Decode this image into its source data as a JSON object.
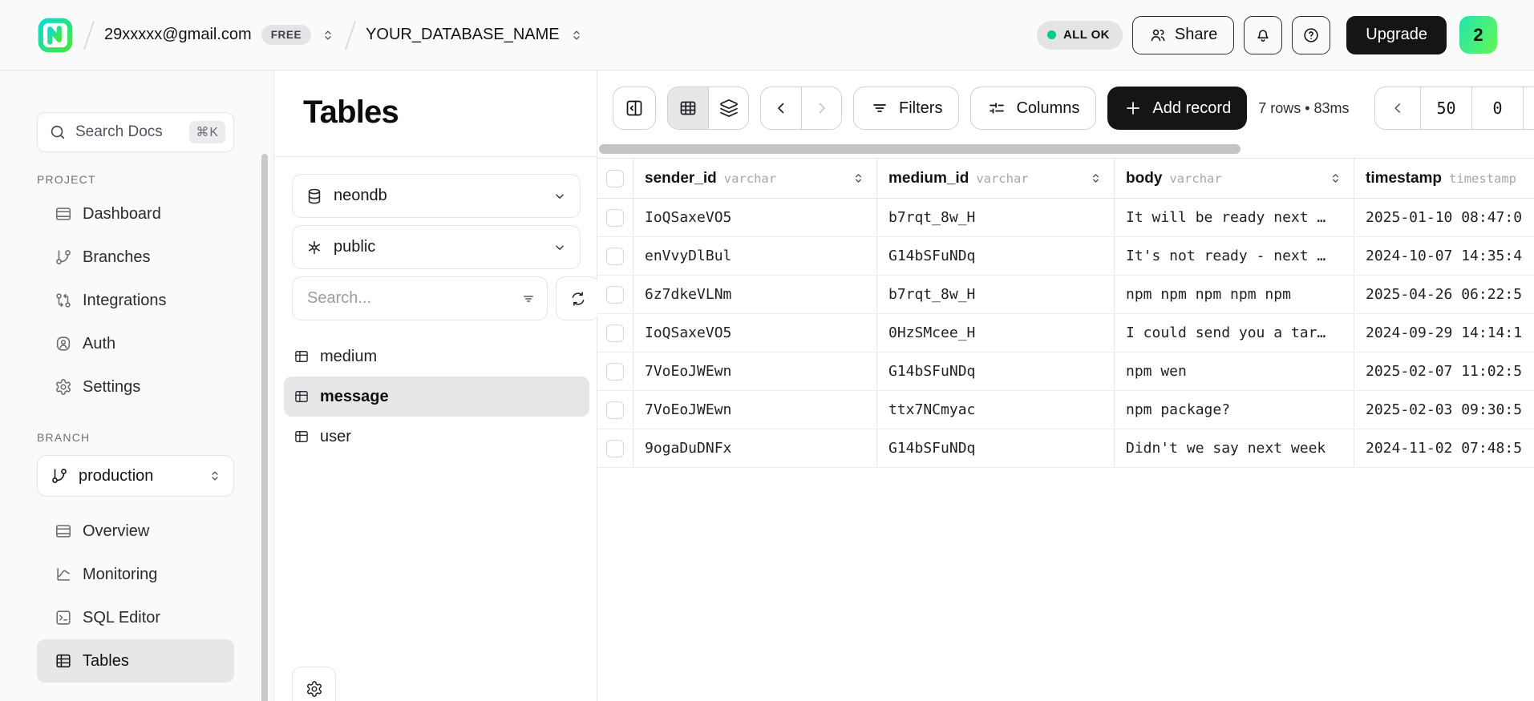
{
  "topbar": {
    "account_email": "29xxxxx@gmail.com",
    "plan_badge": "FREE",
    "database_name": "YOUR_DATABASE_NAME",
    "status_pill": "ALL OK",
    "share_label": "Share",
    "upgrade_label": "Upgrade",
    "notification_badge": "2"
  },
  "sidebar": {
    "search_docs_label": "Search Docs",
    "search_docs_shortcut": "⌘K",
    "project_section_title": "PROJECT",
    "project_items": [
      {
        "label": "Dashboard",
        "icon": "dashboard-icon"
      },
      {
        "label": "Branches",
        "icon": "branches-icon"
      },
      {
        "label": "Integrations",
        "icon": "integrations-icon"
      },
      {
        "label": "Auth",
        "icon": "auth-icon"
      },
      {
        "label": "Settings",
        "icon": "settings-icon"
      }
    ],
    "branch_section_title": "BRANCH",
    "branch_selector": "production",
    "branch_items": [
      {
        "label": "Overview",
        "icon": "overview-icon"
      },
      {
        "label": "Monitoring",
        "icon": "monitoring-icon"
      },
      {
        "label": "SQL Editor",
        "icon": "sql-editor-icon"
      },
      {
        "label": "Tables",
        "icon": "tables-icon",
        "active": true
      }
    ]
  },
  "tables_panel": {
    "title": "Tables",
    "database_selector": "neondb",
    "schema_selector": "public",
    "search_placeholder": "Search...",
    "tables": [
      {
        "name": "medium"
      },
      {
        "name": "message",
        "active": true
      },
      {
        "name": "user"
      }
    ]
  },
  "toolbar": {
    "filters_label": "Filters",
    "columns_label": "Columns",
    "add_record_label": "Add record",
    "row_stats": "7 rows • 83ms",
    "page_size": "50",
    "page_offset": "0"
  },
  "grid": {
    "columns": [
      {
        "name": "sender_id",
        "type": "varchar"
      },
      {
        "name": "medium_id",
        "type": "varchar"
      },
      {
        "name": "body",
        "type": "varchar"
      },
      {
        "name": "timestamp",
        "type": "timestamp"
      }
    ],
    "rows": [
      {
        "sender_id": "IoQSaxeVO5",
        "medium_id": "b7rqt_8w_H",
        "body": "It will be ready next …",
        "timestamp": "2025-01-10 08:47:0"
      },
      {
        "sender_id": "enVvyDlBul",
        "medium_id": "G14bSFuNDq",
        "body": "It's not ready - next …",
        "timestamp": "2024-10-07 14:35:4"
      },
      {
        "sender_id": "6z7dkeVLNm",
        "medium_id": "b7rqt_8w_H",
        "body": "npm npm npm npm npm",
        "timestamp": "2025-04-26 06:22:5"
      },
      {
        "sender_id": "IoQSaxeVO5",
        "medium_id": "0HzSMcee_H",
        "body": "I could send you a tar…",
        "timestamp": "2024-09-29 14:14:1"
      },
      {
        "sender_id": "7VoEoJWEwn",
        "medium_id": "G14bSFuNDq",
        "body": "npm wen",
        "timestamp": "2025-02-07 11:02:5"
      },
      {
        "sender_id": "7VoEoJWEwn",
        "medium_id": "ttx7NCmyac",
        "body": "npm package?",
        "timestamp": "2025-02-03 09:30:5"
      },
      {
        "sender_id": "9ogaDuDNFx",
        "medium_id": "G14bSFuNDq",
        "body": "Didn't we say next week",
        "timestamp": "2024-11-02 07:48:5"
      }
    ]
  },
  "colors": {
    "brand_green": "#00e599",
    "brand_teal": "#0adbd0",
    "status_dot": "#00cc88",
    "dark_button": "#151518",
    "badge_gradient_start": "#24e5ae",
    "badge_gradient_end": "#63f655",
    "active_bg": "#e7e7e9"
  }
}
